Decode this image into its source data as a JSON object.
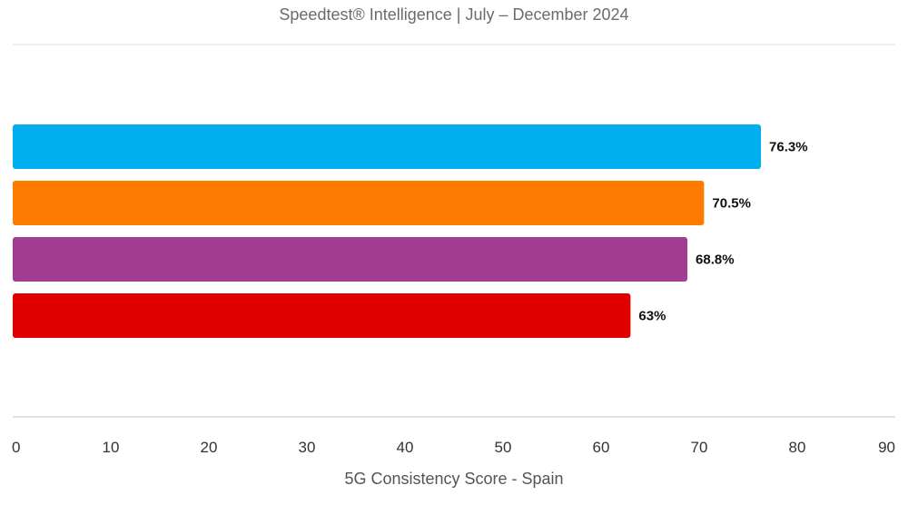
{
  "chart_data": {
    "type": "bar",
    "orientation": "horizontal",
    "subtitle": "Speedtest® Intelligence | July – December 2024",
    "xlabel": "5G Consistency Score - Spain",
    "ylabel": "",
    "xlim": [
      0,
      90
    ],
    "xticks": [
      0,
      10,
      20,
      30,
      40,
      50,
      60,
      70,
      80,
      90
    ],
    "grid": false,
    "legend": "none",
    "series": [
      {
        "values": [
          76.3,
          70.5,
          68.8,
          63
        ],
        "labels": [
          "76.3%",
          "70.5%",
          "68.8%",
          "63%"
        ],
        "colors": [
          "#00AEEF",
          "#FF7A00",
          "#A23D92",
          "#E10000"
        ]
      }
    ]
  }
}
